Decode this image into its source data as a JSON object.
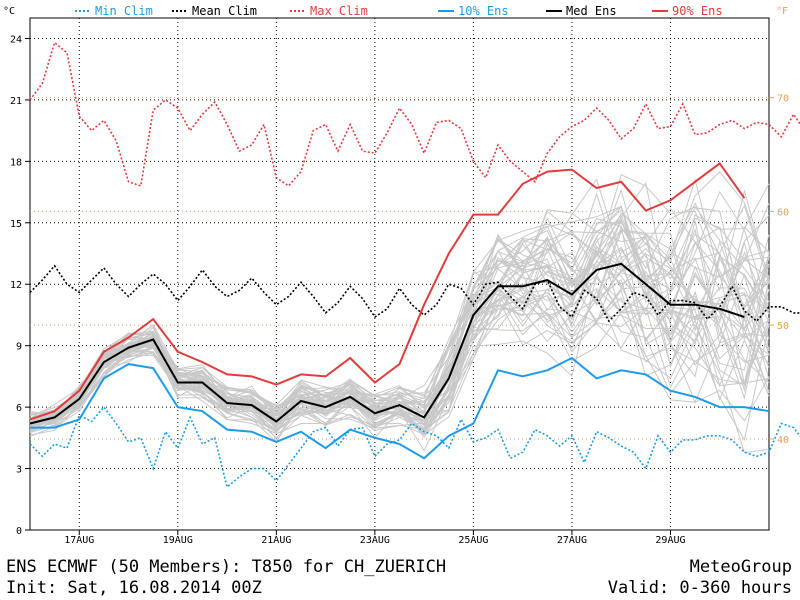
{
  "legend": [
    {
      "label": "Min_Clim",
      "color": "#1e9be6",
      "dashed": true
    },
    {
      "label": "Mean_Clim",
      "color": "#000000",
      "dashed": true
    },
    {
      "label": "Max_Clim",
      "color": "#e03c3c",
      "dashed": true
    },
    {
      "label": "10%_Ens",
      "color": "#1e9be6",
      "dashed": false
    },
    {
      "label": "Med_Ens",
      "color": "#000000",
      "dashed": false
    },
    {
      "label": "90%_Ens",
      "color": "#e03c3c",
      "dashed": false
    }
  ],
  "unit_left": "°C",
  "unit_right": "°F",
  "footer": {
    "title": "ENS ECMWF (50 Members): T850 for CH_ZUERICH",
    "init": "Init: Sat, 16.08.2014 00Z",
    "brand": "MeteoGroup",
    "valid": "Valid: 0-360 hours"
  },
  "colors": {
    "min": "#1e9be6",
    "mean": "#000000",
    "max": "#e03c3c",
    "member": "#c8c8c8",
    "fahrenheit": "#e0a060",
    "grid": "#000000"
  },
  "chart_data": {
    "type": "line",
    "title": "ENS ECMWF (50 Members): T850 for CH_ZUERICH",
    "xlabel": "",
    "ylabel": "°C",
    "xlim": [
      0,
      360
    ],
    "ylim": [
      0,
      25
    ],
    "x_ticks": [
      {
        "hour": 24,
        "label": "17AUG"
      },
      {
        "hour": 72,
        "label": "19AUG"
      },
      {
        "hour": 120,
        "label": "21AUG"
      },
      {
        "hour": 168,
        "label": "23AUG"
      },
      {
        "hour": 216,
        "label": "25AUG"
      },
      {
        "hour": 264,
        "label": "27AUG"
      },
      {
        "hour": 312,
        "label": "29AUG"
      }
    ],
    "y_ticks_c": [
      0,
      3,
      6,
      9,
      12,
      15,
      18,
      21,
      24
    ],
    "y_ticks_f": [
      40,
      50,
      60,
      70
    ],
    "climate_hours_step": 6,
    "series": [
      {
        "name": "Min_Clim",
        "style": "dashed",
        "values": [
          4.2,
          3.6,
          4.2,
          4.0,
          5.6,
          5.3,
          6.0,
          5.2,
          4.3,
          4.5,
          3.0,
          4.8,
          4.0,
          5.5,
          4.2,
          4.5,
          2.1,
          2.6,
          3.0,
          3.0,
          2.4,
          3.2,
          4.0,
          4.8,
          5.0,
          4.1,
          4.9,
          5.0,
          3.6,
          4.2,
          4.4,
          5.2,
          4.8,
          4.6,
          4.0,
          5.4,
          4.3,
          4.5,
          4.9,
          3.5,
          3.8,
          4.9,
          4.6,
          4.1,
          4.6,
          3.3,
          4.8,
          4.5,
          4.1,
          3.8,
          3.0,
          4.6,
          3.8,
          4.4,
          4.4,
          4.6,
          4.6,
          4.4,
          3.8,
          3.6,
          3.8,
          5.2,
          5.0,
          4.2,
          4.7,
          3.0,
          3.8,
          3.6,
          3.0,
          2.6,
          3.2,
          3.0,
          3.0,
          3.4,
          4.0,
          4.6,
          3.0,
          3.0,
          2.8,
          3.4,
          3.0,
          4.4,
          2.8,
          2.8,
          3.2,
          4.4,
          3.4,
          3.6,
          3.6,
          3.6,
          3.8,
          4.1,
          2.5,
          3.6,
          4.0,
          3.5,
          2.7,
          3.8,
          4.0,
          3.1,
          2.7,
          3.6,
          3.5,
          4.2,
          3.7,
          3.7,
          3.6,
          3.0,
          3.7,
          3.3,
          3.3,
          3.6,
          3.8,
          4.2,
          3.7,
          2.9,
          3.0,
          3.1,
          3.1,
          2.7,
          2.2
        ]
      },
      {
        "name": "Mean_Clim",
        "style": "dashed",
        "values": [
          11.6,
          12.2,
          12.9,
          12.0,
          11.6,
          12.2,
          12.8,
          12.0,
          11.4,
          12.0,
          12.5,
          12.0,
          11.2,
          11.9,
          12.7,
          11.9,
          11.4,
          11.7,
          12.3,
          11.6,
          11.0,
          11.4,
          12.1,
          11.4,
          10.6,
          11.1,
          11.9,
          11.3,
          10.4,
          10.8,
          11.8,
          11.0,
          10.5,
          11.0,
          12.0,
          11.8,
          11.0,
          12.0,
          12.1,
          11.4,
          10.8,
          12.0,
          12.2,
          10.9,
          10.4,
          11.7,
          11.3,
          10.2,
          10.8,
          11.6,
          11.4,
          10.5,
          11.2,
          11.2,
          11.1,
          10.3,
          10.9,
          11.9,
          10.7,
          10.2,
          10.9,
          10.9,
          10.6,
          10.6,
          10.3,
          10.4,
          11.1,
          10.6,
          10.0,
          11.1,
          11.3,
          10.4,
          10.4,
          11.3,
          10.3,
          10.2,
          11.4,
          10.1,
          9.7,
          10.9,
          10.0,
          9.9,
          10.6,
          10.9,
          10.0,
          10.2,
          11.3,
          10.4,
          10.0,
          10.6,
          10.8,
          10.2,
          10.1,
          10.8,
          10.2,
          9.9,
          11.3,
          10.5,
          9.4,
          10.6,
          11.3,
          10.1,
          9.4,
          10.7,
          10.6,
          9.5,
          9.9,
          11.0,
          10.2,
          9.4,
          10.6,
          11.0,
          10.2,
          10.1,
          10.6,
          10.4,
          9.9,
          11.1,
          10.7,
          10.2,
          9.8
        ]
      },
      {
        "name": "Max_Clim",
        "style": "dashed",
        "values": [
          21.0,
          21.8,
          23.8,
          23.3,
          20.2,
          19.5,
          20.0,
          19.0,
          17.0,
          16.8,
          20.5,
          21.0,
          20.6,
          19.5,
          20.3,
          20.9,
          19.8,
          18.5,
          18.8,
          19.8,
          17.2,
          16.8,
          17.5,
          19.5,
          19.8,
          18.5,
          19.8,
          18.5,
          18.4,
          19.4,
          20.6,
          19.8,
          18.4,
          19.9,
          20.0,
          19.6,
          18.0,
          17.2,
          18.8,
          18.0,
          17.5,
          17.0,
          18.4,
          19.2,
          19.7,
          20.0,
          20.6,
          20.0,
          19.1,
          19.6,
          20.8,
          19.6,
          19.7,
          20.8,
          19.3,
          19.4,
          19.8,
          20.0,
          19.6,
          19.9,
          19.8,
          19.2,
          20.3,
          19.4,
          19.6,
          19.7,
          20.1,
          20.5,
          19.5,
          19.6,
          20.3,
          20.7,
          20.6,
          20.0,
          19.9,
          20.1,
          19.6,
          19.9,
          20.3,
          20.2,
          20.1,
          19.7,
          19.9,
          20.5,
          20.4,
          20.1,
          20.4,
          20.5,
          19.8,
          20.1,
          20.3,
          20.0,
          20.2,
          20.5,
          19.9,
          19.8,
          20.4,
          20.6,
          19.8,
          20.1,
          20.8,
          20.0,
          19.9,
          20.2,
          20.0,
          20.0,
          20.2,
          19.9,
          19.8,
          20.0,
          20.4,
          20.3,
          20.0,
          19.7,
          20.2,
          20.1,
          20.0,
          19.9,
          20.0,
          19.6,
          19.0
        ]
      },
      {
        "name": "10%_Ens",
        "style": "solid",
        "points": [
          [
            0,
            5.0
          ],
          [
            12,
            5.0
          ],
          [
            24,
            5.4
          ],
          [
            36,
            7.4
          ],
          [
            48,
            8.1
          ],
          [
            60,
            7.9
          ],
          [
            72,
            6.0
          ],
          [
            84,
            5.8
          ],
          [
            96,
            4.9
          ],
          [
            108,
            4.8
          ],
          [
            120,
            4.3
          ],
          [
            132,
            4.8
          ],
          [
            144,
            4.0
          ],
          [
            156,
            4.9
          ],
          [
            168,
            4.5
          ],
          [
            180,
            4.2
          ],
          [
            192,
            3.5
          ],
          [
            204,
            4.6
          ],
          [
            216,
            5.2
          ],
          [
            228,
            7.8
          ],
          [
            240,
            7.5
          ],
          [
            252,
            7.8
          ],
          [
            264,
            8.4
          ],
          [
            276,
            7.4
          ],
          [
            288,
            7.8
          ],
          [
            300,
            7.6
          ],
          [
            312,
            6.8
          ],
          [
            324,
            6.5
          ],
          [
            336,
            6.0
          ],
          [
            348,
            6.0
          ],
          [
            360,
            5.8
          ]
        ]
      },
      {
        "name": "Med_Ens",
        "style": "solid",
        "points": [
          [
            0,
            5.2
          ],
          [
            12,
            5.5
          ],
          [
            24,
            6.4
          ],
          [
            36,
            8.2
          ],
          [
            48,
            8.9
          ],
          [
            60,
            9.3
          ],
          [
            72,
            7.2
          ],
          [
            84,
            7.2
          ],
          [
            96,
            6.2
          ],
          [
            108,
            6.1
          ],
          [
            120,
            5.3
          ],
          [
            132,
            6.3
          ],
          [
            144,
            6.0
          ],
          [
            156,
            6.5
          ],
          [
            168,
            5.7
          ],
          [
            180,
            6.1
          ],
          [
            192,
            5.5
          ],
          [
            204,
            7.4
          ],
          [
            216,
            10.5
          ],
          [
            228,
            11.9
          ],
          [
            240,
            11.9
          ],
          [
            252,
            12.2
          ],
          [
            264,
            11.5
          ],
          [
            276,
            12.7
          ],
          [
            288,
            13.0
          ],
          [
            300,
            12.0
          ],
          [
            312,
            11.0
          ],
          [
            324,
            11.0
          ],
          [
            336,
            10.8
          ],
          [
            348,
            10.4
          ]
        ]
      },
      {
        "name": "90%_Ens",
        "style": "solid",
        "points": [
          [
            0,
            5.4
          ],
          [
            12,
            5.8
          ],
          [
            24,
            6.8
          ],
          [
            36,
            8.7
          ],
          [
            48,
            9.4
          ],
          [
            60,
            10.3
          ],
          [
            72,
            8.7
          ],
          [
            84,
            8.2
          ],
          [
            96,
            7.6
          ],
          [
            108,
            7.5
          ],
          [
            120,
            7.1
          ],
          [
            132,
            7.6
          ],
          [
            144,
            7.5
          ],
          [
            156,
            8.4
          ],
          [
            168,
            7.2
          ],
          [
            180,
            8.1
          ],
          [
            192,
            11.0
          ],
          [
            204,
            13.5
          ],
          [
            216,
            15.4
          ],
          [
            228,
            15.4
          ],
          [
            240,
            16.9
          ],
          [
            252,
            17.5
          ],
          [
            264,
            17.6
          ],
          [
            276,
            16.7
          ],
          [
            288,
            17.0
          ],
          [
            300,
            15.6
          ],
          [
            312,
            16.1
          ],
          [
            324,
            17.0
          ],
          [
            336,
            17.9
          ],
          [
            348,
            16.2
          ]
        ]
      }
    ],
    "members_count": 50,
    "member_style": "solid light gray"
  }
}
